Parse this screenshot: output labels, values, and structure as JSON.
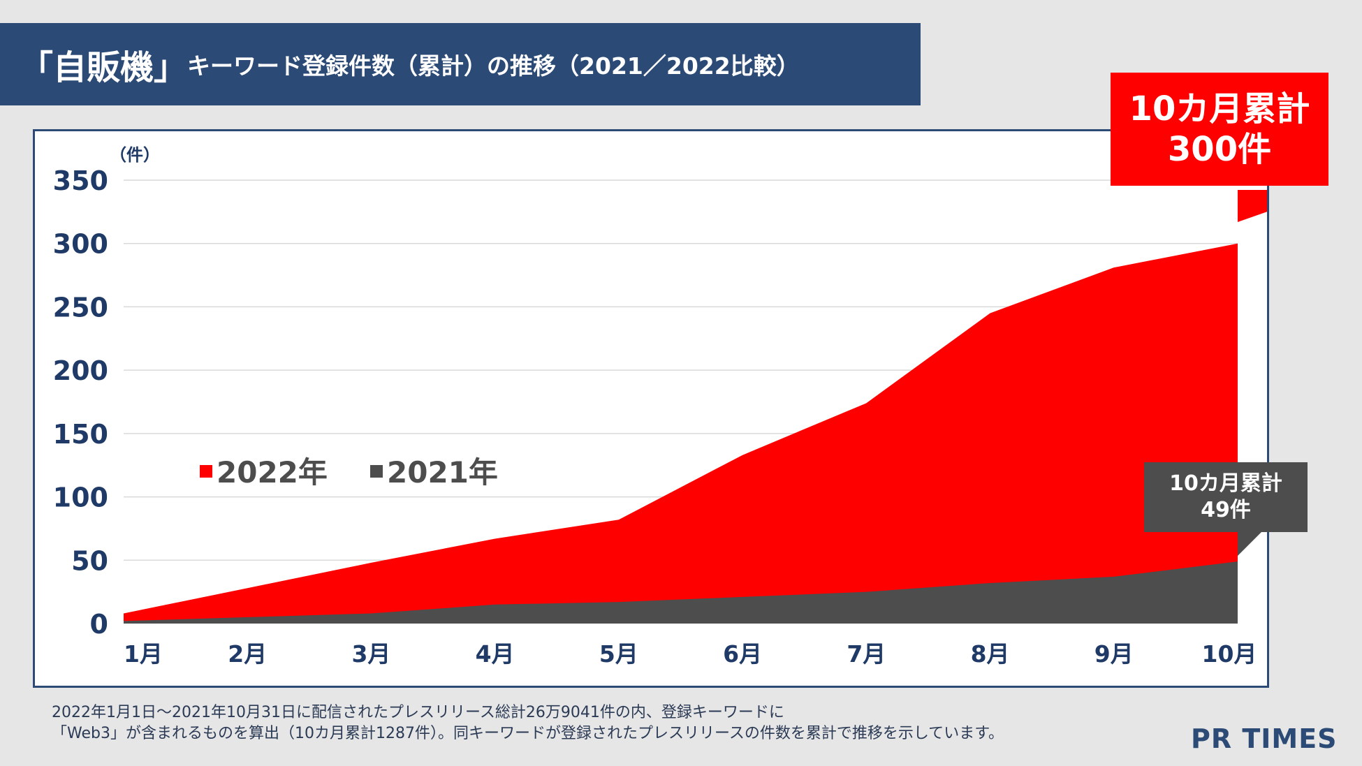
{
  "title": {
    "keyword": "「自販機」",
    "rest": "キーワード登録件数（累計）の推移（2021／2022比較）"
  },
  "callouts": {
    "total_2022": {
      "line1": "10カ月累計",
      "line2": "300件"
    },
    "total_2021": {
      "line1": "10カ月累計",
      "line2": "49件"
    }
  },
  "footnote": {
    "line1": "2022年1月1日～2021年10月31日に配信されたプレスリリース総計26万9041件の内、登録キーワードに",
    "line2": "「Web3」が含まれるものを算出（10カ月累計1287件）。同キーワードが登録されたプレスリリースの件数を累計で推移を示しています。"
  },
  "logo": "PR TIMES",
  "colors": {
    "series_2022": "#ff0000",
    "series_2021": "#4d4d4d",
    "title_bg": "#2b4a76",
    "axis_text": "#1f3a66"
  },
  "chart_data": {
    "type": "area",
    "unit_label": "（件）",
    "categories": [
      "1月",
      "2月",
      "3月",
      "4月",
      "5月",
      "6月",
      "7月",
      "8月",
      "9月",
      "10月"
    ],
    "ylim": [
      0,
      350
    ],
    "yticks": [
      0,
      50,
      100,
      150,
      200,
      250,
      300,
      350
    ],
    "grid": true,
    "legend_position": "left-middle",
    "series": [
      {
        "name": "2022年",
        "values": [
          8,
          28,
          48,
          67,
          82,
          133,
          174,
          245,
          281,
          300
        ]
      },
      {
        "name": "2021年",
        "values": [
          2,
          5,
          8,
          15,
          17,
          21,
          25,
          32,
          37,
          49
        ]
      }
    ]
  }
}
